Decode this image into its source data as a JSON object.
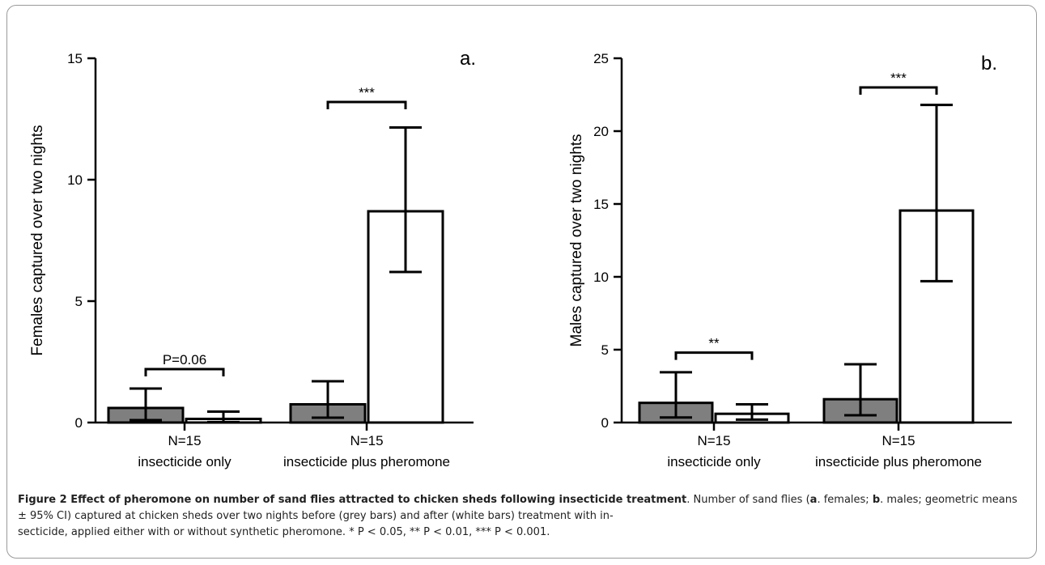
{
  "chart_data": [
    {
      "type": "bar",
      "panel_label": "a.",
      "ylabel": "Females captured over two nights",
      "ylim": [
        0,
        15
      ],
      "yticks": [
        0,
        5,
        10,
        15
      ],
      "categories": [
        "insecticide only",
        "insecticide plus pheromone"
      ],
      "category_n": [
        "N=15",
        "N=15"
      ],
      "series": [
        {
          "values": [
            0.6,
            0.75
          ],
          "ci_low": [
            0.1,
            0.2
          ],
          "ci_high": [
            1.4,
            1.7
          ],
          "color": "#7f7f7f"
        },
        {
          "values": [
            0.15,
            8.7
          ],
          "ci_low": [
            0.02,
            6.2
          ],
          "ci_high": [
            0.45,
            12.15
          ],
          "color": "#ffffff"
        }
      ],
      "significance": [
        "P=0.06",
        "***"
      ],
      "significance_level": [
        2.2,
        13.2
      ]
    },
    {
      "type": "bar",
      "panel_label": "b.",
      "ylabel": "Males captured over two nights",
      "ylim": [
        0,
        25
      ],
      "yticks": [
        0,
        5,
        10,
        15,
        20,
        25
      ],
      "categories": [
        "insecticide only",
        "insecticide plus pheromone"
      ],
      "category_n": [
        "N=15",
        "N=15"
      ],
      "series": [
        {
          "values": [
            1.35,
            1.6
          ],
          "ci_low": [
            0.35,
            0.5
          ],
          "ci_high": [
            3.45,
            4.0
          ],
          "color": "#7f7f7f"
        },
        {
          "values": [
            0.6,
            14.55
          ],
          "ci_low": [
            0.2,
            9.7
          ],
          "ci_high": [
            1.25,
            21.8
          ],
          "color": "#ffffff"
        }
      ],
      "significance": [
        "**",
        "***"
      ],
      "significance_level": [
        4.8,
        23.0
      ]
    }
  ],
  "caption": {
    "title": "Figure 2 Effect of pheromone on number of sand flies attracted to chicken sheds following insecticide treatment",
    "text_1": ". Number of sand flies (",
    "bold_a": "a",
    "text_2": ". females; ",
    "bold_b": "b",
    "text_3": ". males; geometric means ± 95% CI) captured at chicken sheds over two nights before (grey bars) and after (white bars) treatment with in-",
    "line_3": "secticide, applied either with or without synthetic pheromone. * P < 0.05, ** P < 0.01, *** P < 0.001."
  }
}
